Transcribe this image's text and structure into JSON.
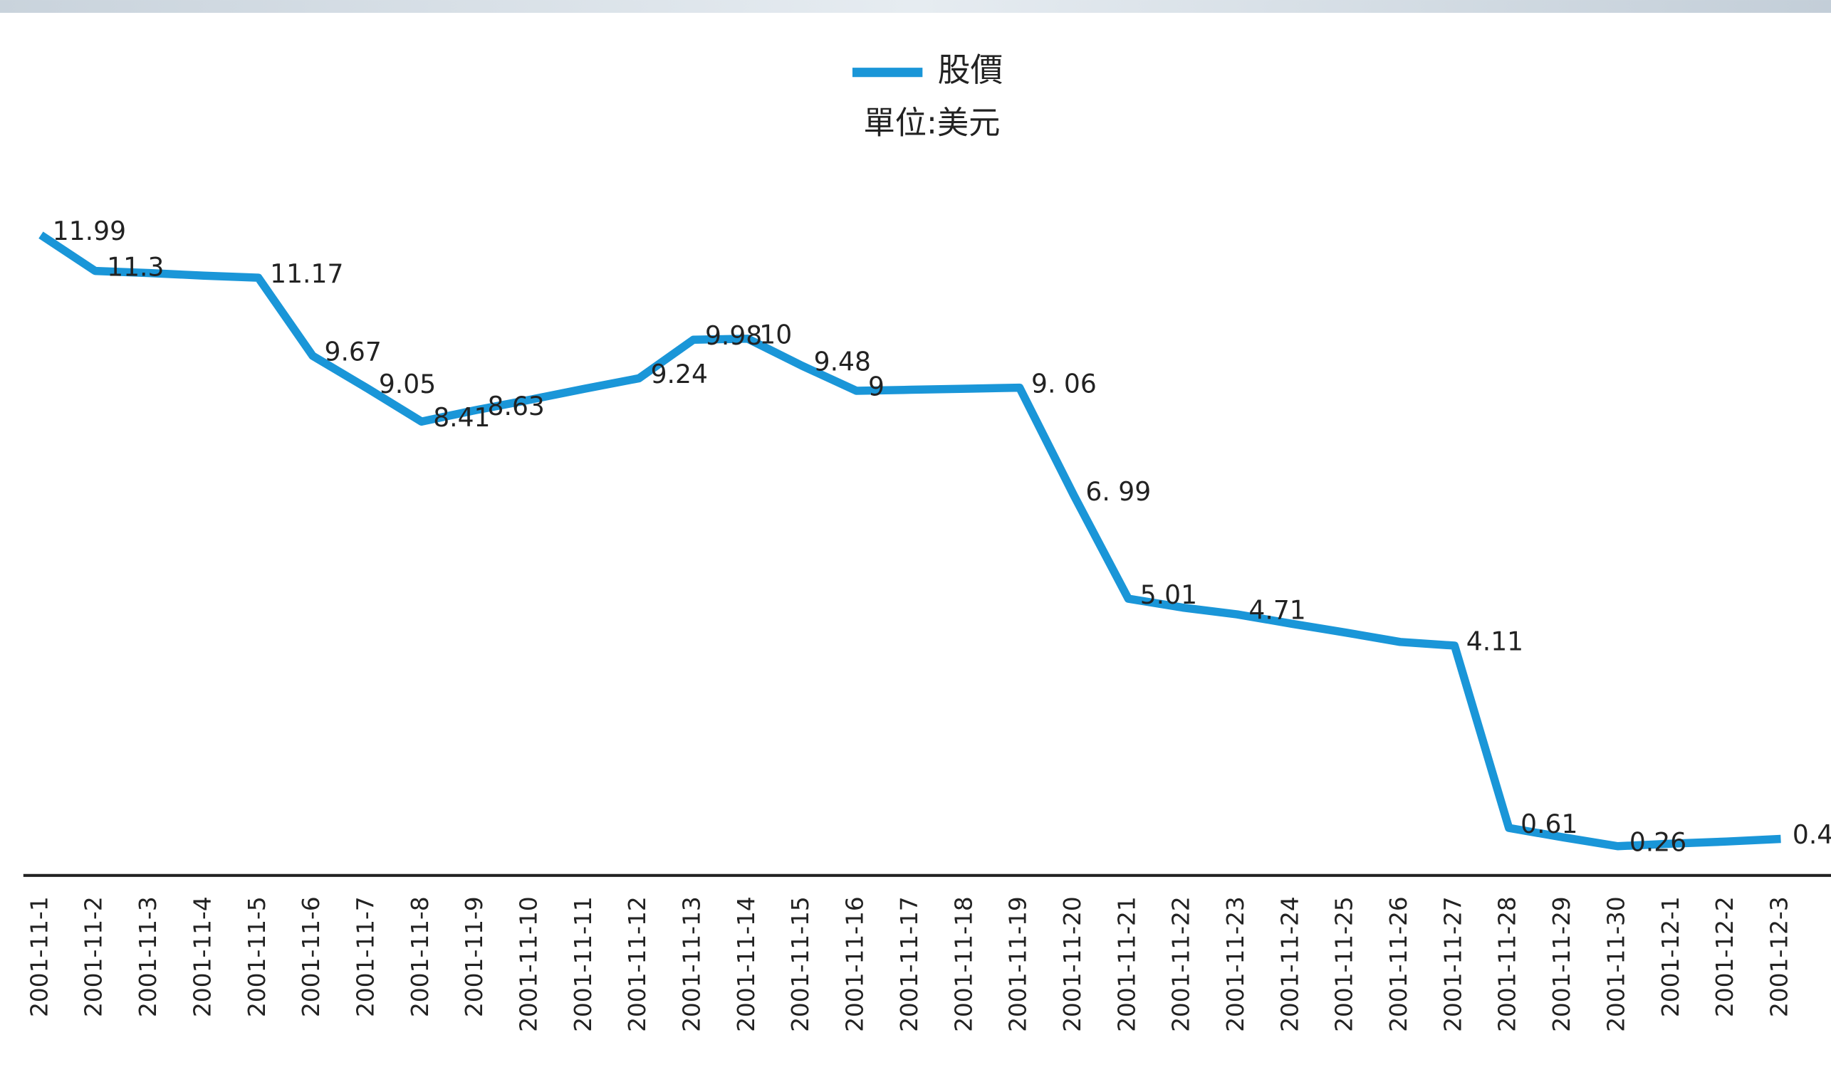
{
  "chart_data": {
    "type": "line",
    "subtitle": "單位:美元",
    "categories": [
      "2001-11-1",
      "2001-11-2",
      "2001-11-3",
      "2001-11-4",
      "2001-11-5",
      "2001-11-6",
      "2001-11-7",
      "2001-11-8",
      "2001-11-9",
      "2001-11-10",
      "2001-11-11",
      "2001-11-12",
      "2001-11-13",
      "2001-11-14",
      "2001-11-15",
      "2001-11-16",
      "2001-11-17",
      "2001-11-18",
      "2001-11-19",
      "2001-11-20",
      "2001-11-21",
      "2001-11-22",
      "2001-11-23",
      "2001-11-24",
      "2001-11-25",
      "2001-11-26",
      "2001-11-27",
      "2001-11-28",
      "2001-11-29",
      "2001-11-30",
      "2001-12-1",
      "2001-12-2",
      "2001-12-3"
    ],
    "series": [
      {
        "name": "股價",
        "color": "#1a96d8",
        "values": [
          11.99,
          11.3,
          11.26,
          11.21,
          11.17,
          9.67,
          9.05,
          8.41,
          8.63,
          8.83,
          9.04,
          9.24,
          9.98,
          10,
          9.48,
          9,
          9.02,
          9.04,
          9.06,
          6.99,
          5.01,
          4.84,
          4.71,
          4.53,
          4.36,
          4.18,
          4.11,
          0.61,
          0.43,
          0.26,
          0.31,
          0.35,
          0.4
        ],
        "value_labels": [
          "11.99",
          "11.3",
          null,
          null,
          "11.17",
          "9.67",
          "9.05",
          "8.41",
          "8.63",
          null,
          null,
          "9.24",
          "9.98",
          "10",
          "9.48",
          "9",
          null,
          null,
          "9. 06",
          "6. 99",
          "5.01",
          null,
          "4.71",
          null,
          null,
          null,
          "4.11",
          "0.61",
          null,
          "0.26",
          null,
          null,
          "0.4"
        ]
      }
    ],
    "ylim": [
      -0.3,
      16.5
    ],
    "legend": "top"
  }
}
